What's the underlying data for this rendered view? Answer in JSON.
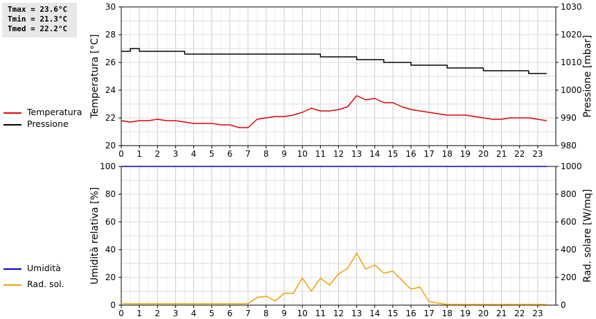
{
  "stats": {
    "tmax": "Tmax = 23.6°C",
    "tmin": "Tmin = 21.3°C",
    "tmed": "Tmed = 22.2°C"
  },
  "legend_top": [
    {
      "label": "Temperatura",
      "color": "#e00000"
    },
    {
      "label": "Pressione",
      "color": "#000000"
    }
  ],
  "legend_bottom": [
    {
      "label": "Umidità",
      "color": "#0000cc"
    },
    {
      "label": "Rad. sol.",
      "color": "#f0a000"
    }
  ],
  "chart_data": [
    {
      "type": "line",
      "xlabel": "",
      "ylabel": "Temperatura [°C]",
      "y2label": "Pressione [mbar]",
      "xlim": [
        0,
        24
      ],
      "ylim": [
        20,
        30
      ],
      "y2lim": [
        980,
        1030
      ],
      "xticks": [
        0,
        1,
        2,
        3,
        4,
        5,
        6,
        7,
        8,
        9,
        10,
        11,
        12,
        13,
        14,
        15,
        16,
        17,
        18,
        19,
        20,
        21,
        22,
        23
      ],
      "yticks": [
        20,
        22,
        24,
        26,
        28,
        30
      ],
      "y2ticks": [
        980,
        990,
        1000,
        1010,
        1020,
        1030
      ],
      "grid": true,
      "series": [
        {
          "name": "Temperatura",
          "axis": "left",
          "color": "#e00000",
          "step": false,
          "x": [
            0,
            0.5,
            1,
            1.5,
            2,
            2.5,
            3,
            3.5,
            4,
            4.5,
            5,
            5.5,
            6,
            6.5,
            7,
            7.5,
            8,
            8.5,
            9,
            9.5,
            10,
            10.5,
            11,
            11.5,
            12,
            12.5,
            13,
            13.5,
            14,
            14.5,
            15,
            15.5,
            16,
            16.5,
            17,
            17.5,
            18,
            18.5,
            19,
            19.5,
            20,
            20.5,
            21,
            21.5,
            22,
            22.5,
            23,
            23.5
          ],
          "y": [
            21.8,
            21.7,
            21.8,
            21.8,
            21.9,
            21.8,
            21.8,
            21.7,
            21.6,
            21.6,
            21.6,
            21.5,
            21.5,
            21.3,
            21.3,
            21.9,
            22.0,
            22.1,
            22.1,
            22.2,
            22.4,
            22.7,
            22.5,
            22.5,
            22.6,
            22.8,
            23.6,
            23.3,
            23.4,
            23.1,
            23.1,
            22.8,
            22.6,
            22.5,
            22.4,
            22.3,
            22.2,
            22.2,
            22.2,
            22.1,
            22.0,
            21.9,
            21.9,
            22.0,
            22.0,
            22.0,
            21.9,
            21.8
          ]
        },
        {
          "name": "Pressione",
          "axis": "right",
          "color": "#000000",
          "step": true,
          "x": [
            0,
            0.5,
            1,
            2,
            3,
            3.5,
            4,
            5,
            6,
            7,
            8,
            9,
            10,
            10.5,
            11,
            12,
            12.5,
            13,
            14,
            14.5,
            15,
            15.5,
            16,
            17,
            17.5,
            18,
            19,
            19.5,
            20,
            21,
            22,
            22.5,
            23,
            23.5
          ],
          "y": [
            1014,
            1015,
            1014,
            1014,
            1014,
            1013,
            1013,
            1013,
            1013,
            1013,
            1013,
            1013,
            1013,
            1013,
            1012,
            1012,
            1012,
            1011,
            1011,
            1010,
            1010,
            1010,
            1009,
            1009,
            1009,
            1008,
            1008,
            1008,
            1007,
            1007,
            1007,
            1006,
            1006,
            1006
          ]
        }
      ]
    },
    {
      "type": "line",
      "xlabel": "",
      "ylabel": "Umidità relativa [%]",
      "y2label": "Rad. solare [W/mq]",
      "xlim": [
        0,
        24
      ],
      "ylim": [
        0,
        100
      ],
      "y2lim": [
        0,
        1000
      ],
      "xticks": [
        0,
        1,
        2,
        3,
        4,
        5,
        6,
        7,
        8,
        9,
        10,
        11,
        12,
        13,
        14,
        15,
        16,
        17,
        18,
        19,
        20,
        21,
        22,
        23
      ],
      "yticks": [
        0,
        20,
        40,
        60,
        80,
        100
      ],
      "y2ticks": [
        0,
        200,
        400,
        600,
        800,
        1000
      ],
      "grid": true,
      "series": [
        {
          "name": "Umidità",
          "axis": "left",
          "color": "#0000cc",
          "step": false,
          "x": [
            0,
            23.5
          ],
          "y": [
            100,
            100
          ]
        },
        {
          "name": "Rad. sol.",
          "axis": "right",
          "color": "#f0a000",
          "step": false,
          "x": [
            0,
            0.5,
            1,
            1.5,
            2,
            2.5,
            3,
            3.5,
            4,
            4.5,
            5,
            5.5,
            6,
            6.5,
            7,
            7.5,
            8,
            8.5,
            9,
            9.5,
            10,
            10.5,
            11,
            11.5,
            12,
            12.5,
            13,
            13.5,
            14,
            14.5,
            15,
            15.5,
            16,
            16.5,
            17,
            17.5,
            18,
            18.5,
            19,
            19.5,
            20,
            20.5,
            21,
            21.5,
            22,
            22.5,
            23,
            23.5
          ],
          "y": [
            10,
            10,
            10,
            10,
            10,
            10,
            10,
            10,
            10,
            10,
            10,
            10,
            10,
            10,
            10,
            55,
            65,
            30,
            85,
            85,
            195,
            100,
            195,
            145,
            225,
            265,
            375,
            260,
            290,
            230,
            245,
            180,
            115,
            130,
            25,
            15,
            5,
            5,
            5,
            5,
            5,
            5,
            5,
            5,
            5,
            5,
            5,
            5
          ]
        }
      ]
    }
  ]
}
